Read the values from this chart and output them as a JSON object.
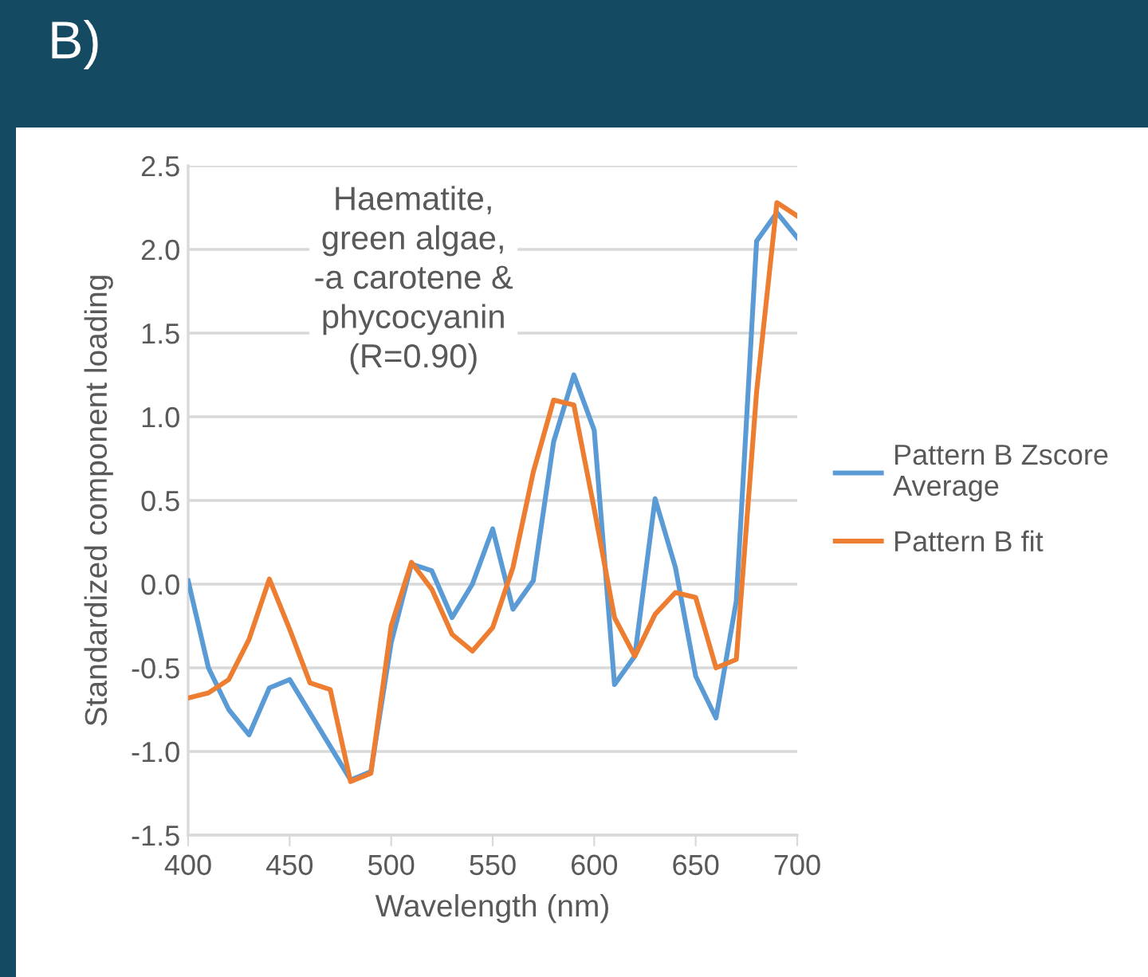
{
  "chart_data": {
    "type": "line",
    "title": "B)",
    "xlabel": "Wavelength (nm)",
    "ylabel": "Standardized component loading",
    "x": [
      400,
      410,
      420,
      430,
      440,
      450,
      460,
      470,
      480,
      490,
      500,
      510,
      520,
      530,
      540,
      550,
      560,
      570,
      580,
      590,
      600,
      610,
      620,
      630,
      640,
      650,
      660,
      670,
      680,
      690,
      700
    ],
    "series": [
      {
        "name": "Pattern B Zscore\nAverage",
        "color": "#5b9bd5",
        "values": [
          0.02,
          -0.5,
          -0.75,
          -0.9,
          -0.62,
          -0.57,
          -0.77,
          -0.97,
          -1.17,
          -1.12,
          -0.35,
          0.12,
          0.08,
          -0.2,
          0.0,
          0.33,
          -0.15,
          0.02,
          0.85,
          1.25,
          0.92,
          -0.6,
          -0.43,
          0.51,
          0.1,
          -0.55,
          -0.8,
          -0.1,
          2.05,
          2.22,
          2.07
        ]
      },
      {
        "name": "Pattern B fit",
        "color": "#ed7d31",
        "values": [
          -0.68,
          -0.65,
          -0.57,
          -0.33,
          0.03,
          -0.27,
          -0.59,
          -0.63,
          -1.18,
          -1.13,
          -0.25,
          0.13,
          -0.03,
          -0.3,
          -0.4,
          -0.26,
          0.1,
          0.67,
          1.1,
          1.07,
          0.45,
          -0.2,
          -0.43,
          -0.18,
          -0.05,
          -0.08,
          -0.5,
          -0.45,
          1.15,
          2.28,
          2.2
        ]
      }
    ],
    "annotations": [
      "Haematite,\ngreen algae,\n-a carotene &\nphycocyanin\n(R=0.90)"
    ],
    "xlim": [
      400,
      700
    ],
    "xticks": [
      400,
      450,
      500,
      550,
      600,
      650,
      700
    ],
    "ylim": [
      -1.5,
      2.5
    ],
    "yticks": [
      -1.5,
      {
        "value": -1,
        "label": "-1.0"
      },
      -0.5,
      {
        "value": 0,
        "label": "0.0"
      },
      0.5,
      {
        "value": 1,
        "label": "1.0"
      },
      1.5,
      {
        "value": 2,
        "label": "2.0"
      },
      2.5
    ],
    "grid": "y",
    "legend": "right",
    "marker": "none",
    "line_style": "solid"
  }
}
